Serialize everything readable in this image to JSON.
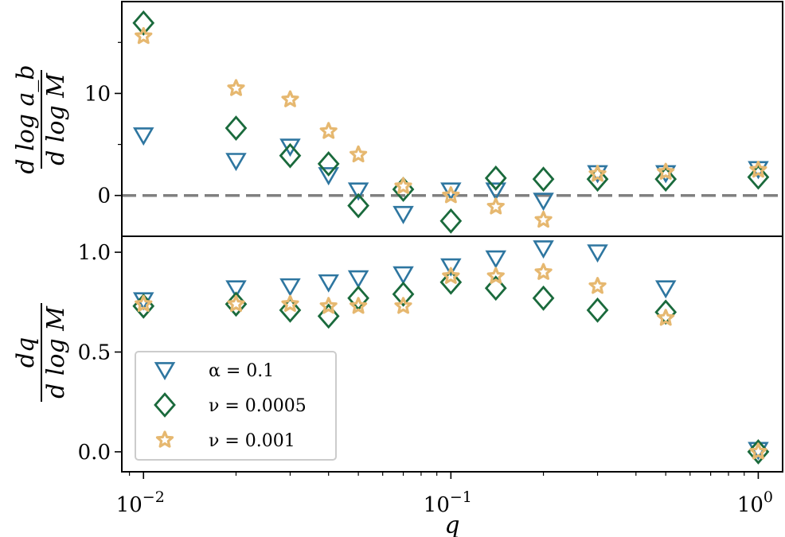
{
  "chart_data": [
    {
      "type": "scatter",
      "panel": "top",
      "ylabel_num": "d log a_b",
      "ylabel_den": "d log M",
      "xscale": "log",
      "xlim": [
        0.0085,
        1.2
      ],
      "ylim": [
        -4,
        19
      ],
      "yticks": [
        0,
        10
      ],
      "yticklabels": [
        "0",
        "10"
      ],
      "reference_line": {
        "y": 0,
        "style": "dashed",
        "color": "#808080"
      },
      "series": [
        {
          "name": "α = 0.1",
          "marker": "triangle-down",
          "color": "#2e76a0",
          "x": [
            0.01,
            0.02,
            0.03,
            0.04,
            0.05,
            0.07,
            0.1,
            0.14,
            0.2,
            0.3,
            0.5,
            1.0
          ],
          "y": [
            5.9,
            3.4,
            4.8,
            2.0,
            0.5,
            -1.8,
            0.5,
            0.5,
            -0.5,
            2.2,
            2.2,
            2.6
          ]
        },
        {
          "name": "ν = 0.0005",
          "marker": "diamond",
          "color": "#1a6a3c",
          "x": [
            0.01,
            0.02,
            0.03,
            0.04,
            0.05,
            0.07,
            0.1,
            0.14,
            0.2,
            0.3,
            0.5,
            1.0
          ],
          "y": [
            16.9,
            6.6,
            3.9,
            3.1,
            -1.0,
            0.6,
            -2.5,
            1.7,
            1.6,
            1.6,
            1.6,
            1.8
          ]
        },
        {
          "name": "ν = 0.001",
          "marker": "star",
          "color": "#e6b870",
          "x": [
            0.01,
            0.02,
            0.03,
            0.04,
            0.05,
            0.07,
            0.1,
            0.14,
            0.2,
            0.3,
            0.5,
            1.0
          ],
          "y": [
            15.6,
            10.5,
            9.4,
            6.3,
            4.0,
            0.9,
            0.0,
            -1.1,
            -2.4,
            2.1,
            2.3,
            2.5
          ]
        }
      ]
    },
    {
      "type": "scatter",
      "panel": "bottom",
      "ylabel_num": "dq",
      "ylabel_den": "d log M",
      "xlabel": "q",
      "xscale": "log",
      "xlim": [
        0.0085,
        1.2
      ],
      "ylim": [
        -0.1,
        1.08
      ],
      "yticks": [
        0.0,
        0.5,
        1.0
      ],
      "yticklabels": [
        "0.0",
        "0.5",
        "1.0"
      ],
      "xticks": [
        0.01,
        0.1,
        1.0
      ],
      "xticklabels": [
        {
          "base": "10",
          "exp": "−2"
        },
        {
          "base": "10",
          "exp": "−1"
        },
        {
          "base": "10",
          "exp": "0"
        }
      ],
      "series": [
        {
          "name": "α = 0.1",
          "marker": "triangle-down",
          "color": "#2e76a0",
          "x": [
            0.01,
            0.02,
            0.03,
            0.04,
            0.05,
            0.07,
            0.1,
            0.14,
            0.2,
            0.3,
            0.5,
            1.0
          ],
          "y": [
            0.76,
            0.82,
            0.83,
            0.85,
            0.87,
            0.89,
            0.93,
            0.97,
            1.02,
            1.0,
            0.82,
            0.01
          ]
        },
        {
          "name": "ν = 0.0005",
          "marker": "diamond",
          "color": "#1a6a3c",
          "x": [
            0.01,
            0.02,
            0.03,
            0.04,
            0.05,
            0.07,
            0.1,
            0.14,
            0.2,
            0.3,
            0.5,
            1.0
          ],
          "y": [
            0.73,
            0.74,
            0.71,
            0.68,
            0.77,
            0.79,
            0.85,
            0.82,
            0.77,
            0.71,
            0.7,
            0.0
          ]
        },
        {
          "name": "ν = 0.001",
          "marker": "star",
          "color": "#e6b870",
          "x": [
            0.01,
            0.02,
            0.03,
            0.04,
            0.05,
            0.07,
            0.1,
            0.14,
            0.2,
            0.3,
            0.5,
            1.0
          ],
          "y": [
            0.74,
            0.74,
            0.74,
            0.73,
            0.73,
            0.73,
            0.88,
            0.88,
            0.9,
            0.83,
            0.67,
            0.0
          ]
        }
      ]
    }
  ],
  "legend": {
    "placement": "lower-left of bottom panel",
    "entries": [
      {
        "marker": "triangle-down",
        "color": "#2e76a0",
        "label": "α = 0.1"
      },
      {
        "marker": "diamond",
        "color": "#1a6a3c",
        "label": "ν = 0.0005"
      },
      {
        "marker": "star",
        "color": "#e6b870",
        "label": "ν = 0.001"
      }
    ]
  }
}
